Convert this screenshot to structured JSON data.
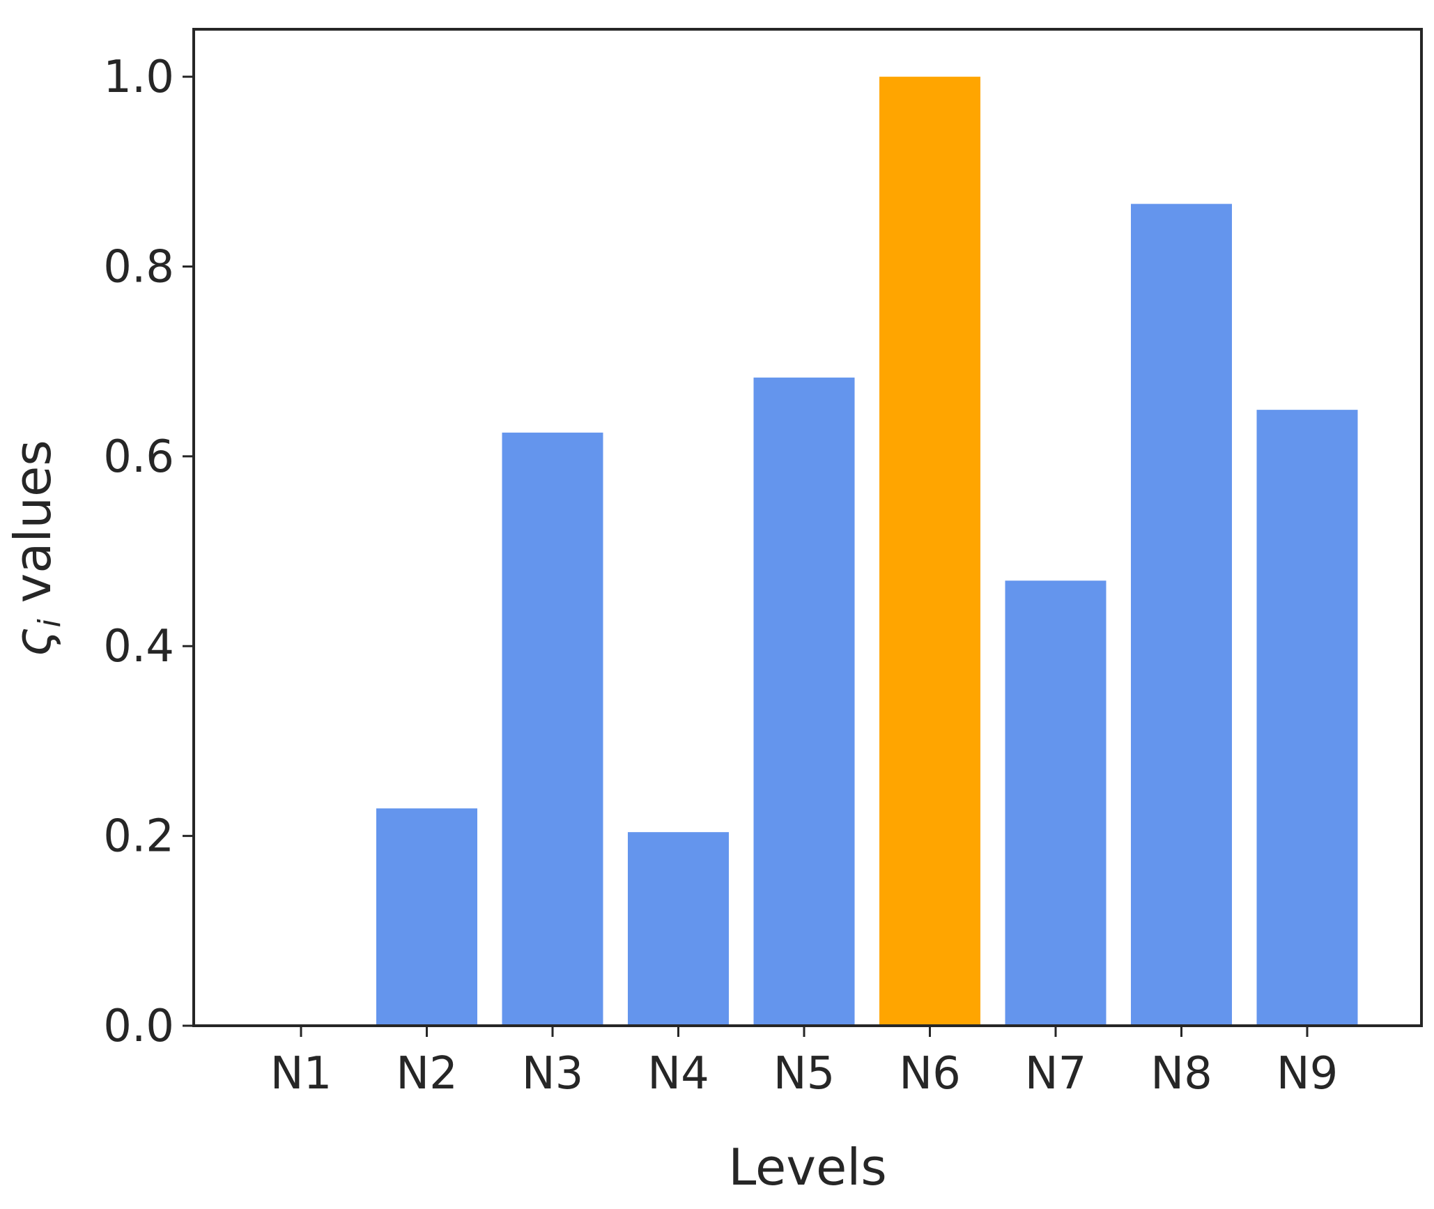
{
  "chart_data": {
    "type": "bar",
    "categories": [
      "N1",
      "N2",
      "N3",
      "N4",
      "N5",
      "N6",
      "N7",
      "N8",
      "N9"
    ],
    "values": [
      0.0,
      0.229,
      0.625,
      0.204,
      0.683,
      1.0,
      0.469,
      0.866,
      0.649
    ],
    "highlight_category": "N6",
    "colors": {
      "bar": "#6495ED",
      "highlight": "#FFA500",
      "axis": "#262626"
    },
    "xlabel": "Levels",
    "ylabel": "ς",
    "ylabel_subscript": "i",
    "ylabel_suffix": " values",
    "ylim": [
      0.0,
      1.05
    ],
    "yticks": [
      0.0,
      0.2,
      0.4,
      0.6,
      0.8,
      1.0
    ],
    "ytick_labels": [
      "0.0",
      "0.2",
      "0.4",
      "0.6",
      "0.8",
      "1.0"
    ],
    "grid": false,
    "legend": "none"
  }
}
